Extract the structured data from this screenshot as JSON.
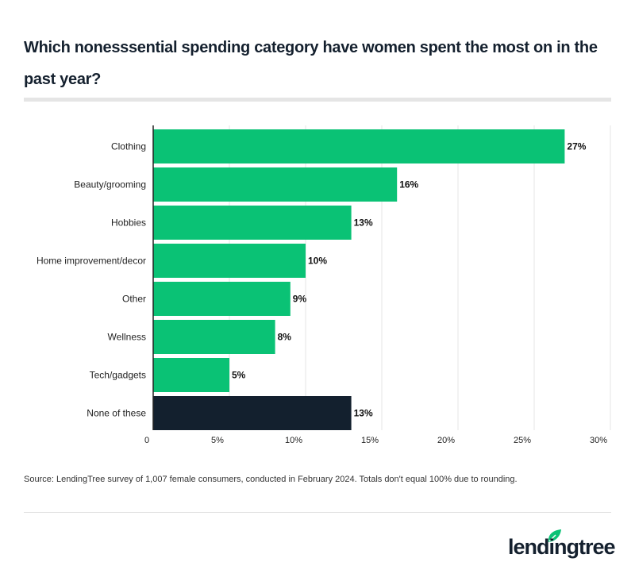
{
  "chart_data": {
    "type": "bar",
    "orientation": "horizontal",
    "title": "Which nonesssential spending category have women spent the most on in the past year?",
    "categories": [
      "Clothing",
      "Beauty/grooming",
      "Hobbies",
      "Home improvement/decor",
      "Other",
      "Wellness",
      "Tech/gadgets",
      "None of these"
    ],
    "values": [
      27,
      16,
      13,
      10,
      9,
      8,
      5,
      13
    ],
    "data_labels": [
      "27%",
      "16%",
      "13%",
      "10%",
      "9%",
      "8%",
      "5%",
      "13%"
    ],
    "colors": [
      "#0ac275",
      "#0ac275",
      "#0ac275",
      "#0ac275",
      "#0ac275",
      "#0ac275",
      "#0ac275",
      "#13202e"
    ],
    "xlim": [
      0,
      30
    ],
    "xticks": [
      0,
      5,
      10,
      15,
      20,
      25,
      30
    ],
    "xtick_labels": [
      "0",
      "5%",
      "10%",
      "15%",
      "20%",
      "25%",
      "30%"
    ],
    "grid": true,
    "xlabel": "",
    "ylabel": ""
  },
  "source": "Source: LendingTree survey of 1,007 female consumers, conducted in February 2024. Totals don't equal 100% due to rounding.",
  "logo": {
    "text": "lendingtree",
    "brand_color": "#0ac275"
  }
}
